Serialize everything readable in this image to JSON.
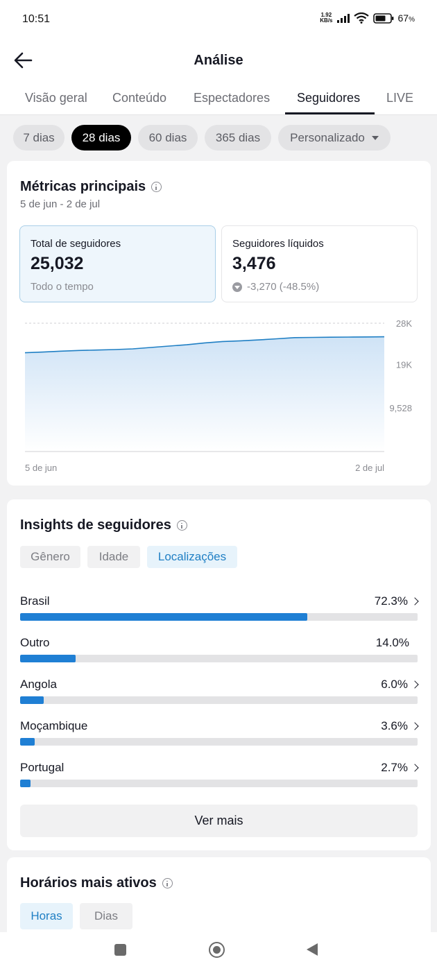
{
  "status_bar": {
    "time": "10:51",
    "net_speed_value": "1.92",
    "net_speed_unit": "KB/s",
    "battery": "67",
    "battery_unit": "%"
  },
  "header": {
    "title": "Análise"
  },
  "tabs": [
    {
      "label": "Visão geral",
      "active": false
    },
    {
      "label": "Conteúdo",
      "active": false
    },
    {
      "label": "Espectadores",
      "active": false
    },
    {
      "label": "Seguidores",
      "active": true
    },
    {
      "label": "LIVE",
      "active": false
    }
  ],
  "date_filters": [
    {
      "label": "7 dias",
      "active": false
    },
    {
      "label": "28 dias",
      "active": true
    },
    {
      "label": "60 dias",
      "active": false
    },
    {
      "label": "365 dias",
      "active": false
    },
    {
      "label": "Personalizado",
      "active": false,
      "dropdown": true
    }
  ],
  "key_metrics": {
    "title": "Métricas principais",
    "date_range": "5 de jun - 2 de jul",
    "total": {
      "label": "Total de seguidores",
      "value": "25,032",
      "sub": "Todo o tempo"
    },
    "net": {
      "label": "Seguidores líquidos",
      "value": "3,476",
      "change": "-3,270 (-48.5%)"
    }
  },
  "chart_data": {
    "type": "area",
    "x_start_label": "5 de jun",
    "x_end_label": "2 de jul",
    "y_tick_labels": [
      "28K",
      "19K",
      "9,528"
    ],
    "y_ticks": [
      28000,
      19000,
      9528
    ],
    "ylim": [
      0,
      28000
    ],
    "grid": true,
    "values": [
      21550,
      21700,
      21900,
      22050,
      22150,
      22250,
      22400,
      22700,
      23000,
      23300,
      23700,
      24000,
      24150,
      24350,
      24600,
      24850,
      24900,
      24950,
      24980,
      25010,
      25032
    ],
    "accent": "#1f7fc4"
  },
  "follower_insights": {
    "title": "Insights de seguidores",
    "segments": [
      {
        "label": "Gênero",
        "active": false
      },
      {
        "label": "Idade",
        "active": false
      },
      {
        "label": "Localizações",
        "active": true
      }
    ],
    "rows": [
      {
        "label": "Brasil",
        "value": "72.3%",
        "fraction": 0.723,
        "chevron": true
      },
      {
        "label": "Outro",
        "value": "14.0%",
        "fraction": 0.14,
        "chevron": false
      },
      {
        "label": "Angola",
        "value": "6.0%",
        "fraction": 0.06,
        "chevron": true
      },
      {
        "label": "Moçambique",
        "value": "3.6%",
        "fraction": 0.036,
        "chevron": true
      },
      {
        "label": "Portugal",
        "value": "2.7%",
        "fraction": 0.027,
        "chevron": true
      }
    ],
    "more_button": "Ver mais",
    "bar_color": "#1f7fd4"
  },
  "active_times": {
    "title": "Horários mais ativos",
    "segments": [
      {
        "label": "Horas",
        "active": true
      },
      {
        "label": "Dias",
        "active": false
      }
    ]
  }
}
